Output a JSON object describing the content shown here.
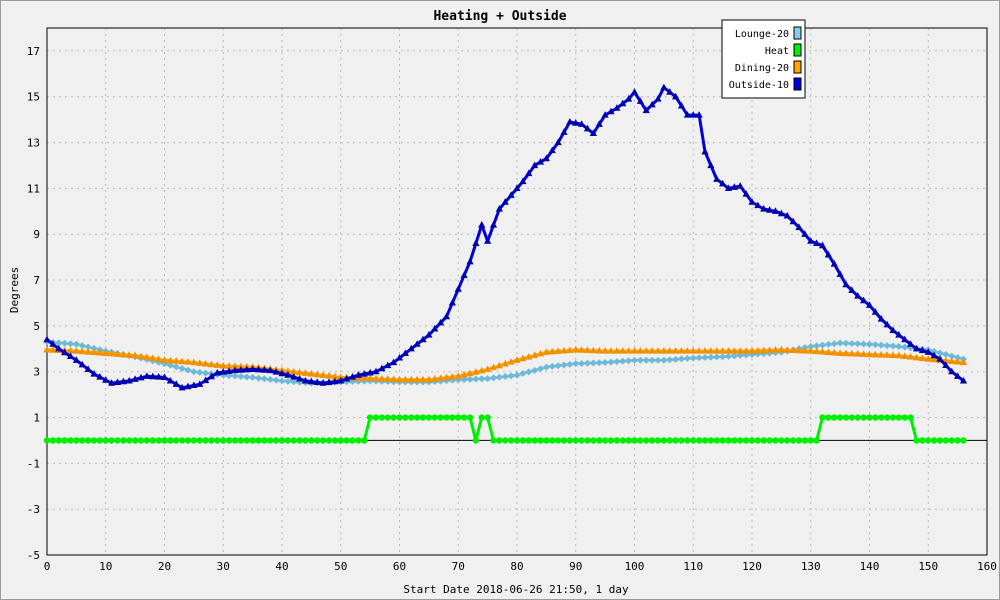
{
  "chart_data": {
    "type": "line",
    "title": "Heating + Outside",
    "xlabel": "Start Date 2018-06-26 21:50, 1 day",
    "ylabel": "Degrees",
    "xlim": [
      0,
      160
    ],
    "ylim": [
      -5,
      18
    ],
    "xticks": [
      0,
      10,
      20,
      30,
      40,
      50,
      60,
      70,
      80,
      90,
      100,
      110,
      120,
      130,
      140,
      150,
      160
    ],
    "yticks": [
      -5,
      -3,
      -1,
      1,
      3,
      5,
      7,
      9,
      11,
      13,
      15,
      17
    ],
    "grid": true,
    "legend_position": "top-right",
    "series": [
      {
        "name": "Lounge-20",
        "color": "#87ceeb",
        "marker": "diamond",
        "points": [
          [
            0,
            4.3
          ],
          [
            5,
            4.2
          ],
          [
            10,
            3.9
          ],
          [
            15,
            3.65
          ],
          [
            20,
            3.35
          ],
          [
            25,
            3.0
          ],
          [
            30,
            2.85
          ],
          [
            35,
            2.75
          ],
          [
            40,
            2.6
          ],
          [
            45,
            2.5
          ],
          [
            50,
            2.55
          ],
          [
            55,
            2.6
          ],
          [
            60,
            2.55
          ],
          [
            65,
            2.55
          ],
          [
            70,
            2.65
          ],
          [
            75,
            2.7
          ],
          [
            80,
            2.85
          ],
          [
            85,
            3.2
          ],
          [
            90,
            3.35
          ],
          [
            95,
            3.4
          ],
          [
            100,
            3.5
          ],
          [
            105,
            3.5
          ],
          [
            110,
            3.6
          ],
          [
            115,
            3.65
          ],
          [
            120,
            3.75
          ],
          [
            125,
            3.85
          ],
          [
            130,
            4.1
          ],
          [
            135,
            4.25
          ],
          [
            140,
            4.2
          ],
          [
            145,
            4.1
          ],
          [
            150,
            3.95
          ],
          [
            156,
            3.55
          ]
        ]
      },
      {
        "name": "Heat",
        "color": "#00ee00",
        "marker": "circle",
        "points": [
          [
            0,
            0
          ],
          [
            54,
            0
          ],
          [
            55,
            1
          ],
          [
            72,
            1
          ],
          [
            73,
            0
          ],
          [
            74,
            1
          ],
          [
            75,
            1
          ],
          [
            76,
            0
          ],
          [
            131,
            0
          ],
          [
            132,
            1
          ],
          [
            147,
            1
          ],
          [
            148,
            0
          ],
          [
            156,
            0
          ]
        ]
      },
      {
        "name": "Dining-20",
        "color": "#ffa500",
        "marker": "triangle",
        "points": [
          [
            0,
            3.95
          ],
          [
            5,
            3.9
          ],
          [
            10,
            3.8
          ],
          [
            15,
            3.7
          ],
          [
            20,
            3.5
          ],
          [
            25,
            3.4
          ],
          [
            30,
            3.25
          ],
          [
            35,
            3.2
          ],
          [
            40,
            3.05
          ],
          [
            45,
            2.9
          ],
          [
            50,
            2.75
          ],
          [
            55,
            2.7
          ],
          [
            60,
            2.65
          ],
          [
            65,
            2.65
          ],
          [
            70,
            2.8
          ],
          [
            75,
            3.1
          ],
          [
            80,
            3.5
          ],
          [
            85,
            3.85
          ],
          [
            90,
            3.95
          ],
          [
            95,
            3.9
          ],
          [
            100,
            3.9
          ],
          [
            105,
            3.9
          ],
          [
            110,
            3.9
          ],
          [
            115,
            3.9
          ],
          [
            120,
            3.9
          ],
          [
            125,
            3.95
          ],
          [
            130,
            3.9
          ],
          [
            135,
            3.8
          ],
          [
            140,
            3.75
          ],
          [
            145,
            3.7
          ],
          [
            150,
            3.55
          ],
          [
            156,
            3.4
          ]
        ]
      },
      {
        "name": "Outside-10",
        "color": "#0000dd",
        "marker": "triangle",
        "points": [
          [
            0,
            4.4
          ],
          [
            2,
            4.0
          ],
          [
            5,
            3.5
          ],
          [
            8,
            2.9
          ],
          [
            11,
            2.5
          ],
          [
            14,
            2.6
          ],
          [
            17,
            2.8
          ],
          [
            20,
            2.75
          ],
          [
            23,
            2.3
          ],
          [
            26,
            2.45
          ],
          [
            29,
            2.95
          ],
          [
            32,
            3.05
          ],
          [
            35,
            3.1
          ],
          [
            38,
            3.05
          ],
          [
            41,
            2.85
          ],
          [
            44,
            2.6
          ],
          [
            47,
            2.5
          ],
          [
            50,
            2.6
          ],
          [
            53,
            2.85
          ],
          [
            56,
            3.0
          ],
          [
            59,
            3.4
          ],
          [
            62,
            4.0
          ],
          [
            65,
            4.6
          ],
          [
            68,
            5.4
          ],
          [
            70,
            6.6
          ],
          [
            72,
            7.8
          ],
          [
            74,
            9.4
          ],
          [
            75,
            8.7
          ],
          [
            77,
            10.1
          ],
          [
            79,
            10.7
          ],
          [
            81,
            11.3
          ],
          [
            83,
            12.0
          ],
          [
            85,
            12.3
          ],
          [
            87,
            13.0
          ],
          [
            89,
            13.9
          ],
          [
            91,
            13.8
          ],
          [
            93,
            13.4
          ],
          [
            95,
            14.2
          ],
          [
            97,
            14.5
          ],
          [
            99,
            14.9
          ],
          [
            100,
            15.2
          ],
          [
            102,
            14.4
          ],
          [
            104,
            14.9
          ],
          [
            105,
            15.4
          ],
          [
            107,
            15.0
          ],
          [
            109,
            14.2
          ],
          [
            111,
            14.2
          ],
          [
            112,
            12.6
          ],
          [
            114,
            11.4
          ],
          [
            116,
            11.0
          ],
          [
            118,
            11.1
          ],
          [
            120,
            10.4
          ],
          [
            122,
            10.1
          ],
          [
            124,
            10.0
          ],
          [
            126,
            9.8
          ],
          [
            128,
            9.3
          ],
          [
            130,
            8.7
          ],
          [
            132,
            8.5
          ],
          [
            134,
            7.7
          ],
          [
            136,
            6.8
          ],
          [
            138,
            6.3
          ],
          [
            140,
            5.9
          ],
          [
            142,
            5.3
          ],
          [
            144,
            4.8
          ],
          [
            146,
            4.4
          ],
          [
            148,
            4.0
          ],
          [
            150,
            3.85
          ],
          [
            152,
            3.55
          ],
          [
            154,
            3.0
          ],
          [
            156,
            2.6
          ]
        ]
      }
    ]
  }
}
